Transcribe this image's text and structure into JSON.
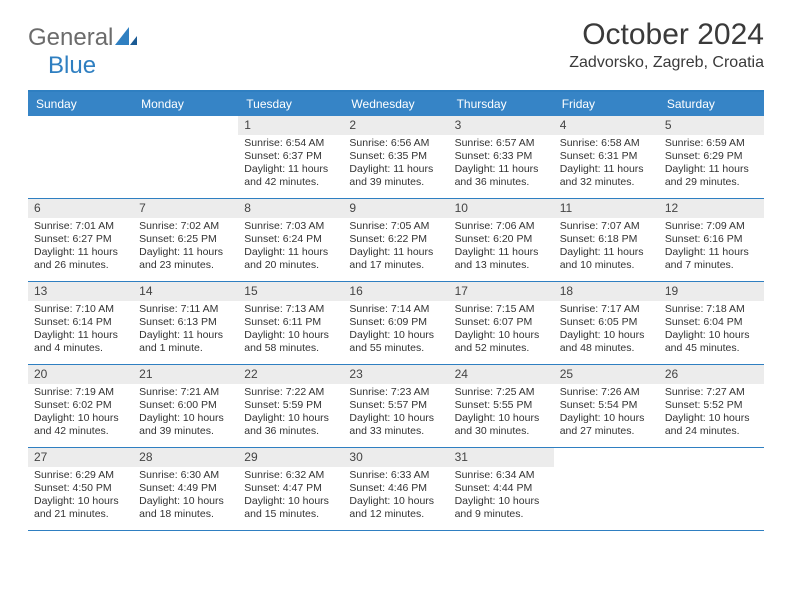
{
  "logo": {
    "text1": "General",
    "text2": "Blue"
  },
  "title": "October 2024",
  "location": "Zadvorsko, Zagreb, Croatia",
  "colors": {
    "header_band": "#3684c6",
    "rule": "#2f7fc1",
    "daynum_band": "#ececec",
    "text": "#333333",
    "logo_gray": "#6b6b6b",
    "logo_blue": "#2f7fc1"
  },
  "fonts": {
    "title_pt": 30,
    "location_pt": 16,
    "dow_pt": 12,
    "cell_pt": 10.5
  },
  "dow": [
    "Sunday",
    "Monday",
    "Tuesday",
    "Wednesday",
    "Thursday",
    "Friday",
    "Saturday"
  ],
  "days": [
    null,
    null,
    {
      "n": "1",
      "sr": "6:54 AM",
      "ss": "6:37 PM",
      "dl": "11 hours and 42 minutes."
    },
    {
      "n": "2",
      "sr": "6:56 AM",
      "ss": "6:35 PM",
      "dl": "11 hours and 39 minutes."
    },
    {
      "n": "3",
      "sr": "6:57 AM",
      "ss": "6:33 PM",
      "dl": "11 hours and 36 minutes."
    },
    {
      "n": "4",
      "sr": "6:58 AM",
      "ss": "6:31 PM",
      "dl": "11 hours and 32 minutes."
    },
    {
      "n": "5",
      "sr": "6:59 AM",
      "ss": "6:29 PM",
      "dl": "11 hours and 29 minutes."
    },
    {
      "n": "6",
      "sr": "7:01 AM",
      "ss": "6:27 PM",
      "dl": "11 hours and 26 minutes."
    },
    {
      "n": "7",
      "sr": "7:02 AM",
      "ss": "6:25 PM",
      "dl": "11 hours and 23 minutes."
    },
    {
      "n": "8",
      "sr": "7:03 AM",
      "ss": "6:24 PM",
      "dl": "11 hours and 20 minutes."
    },
    {
      "n": "9",
      "sr": "7:05 AM",
      "ss": "6:22 PM",
      "dl": "11 hours and 17 minutes."
    },
    {
      "n": "10",
      "sr": "7:06 AM",
      "ss": "6:20 PM",
      "dl": "11 hours and 13 minutes."
    },
    {
      "n": "11",
      "sr": "7:07 AM",
      "ss": "6:18 PM",
      "dl": "11 hours and 10 minutes."
    },
    {
      "n": "12",
      "sr": "7:09 AM",
      "ss": "6:16 PM",
      "dl": "11 hours and 7 minutes."
    },
    {
      "n": "13",
      "sr": "7:10 AM",
      "ss": "6:14 PM",
      "dl": "11 hours and 4 minutes."
    },
    {
      "n": "14",
      "sr": "7:11 AM",
      "ss": "6:13 PM",
      "dl": "11 hours and 1 minute."
    },
    {
      "n": "15",
      "sr": "7:13 AM",
      "ss": "6:11 PM",
      "dl": "10 hours and 58 minutes."
    },
    {
      "n": "16",
      "sr": "7:14 AM",
      "ss": "6:09 PM",
      "dl": "10 hours and 55 minutes."
    },
    {
      "n": "17",
      "sr": "7:15 AM",
      "ss": "6:07 PM",
      "dl": "10 hours and 52 minutes."
    },
    {
      "n": "18",
      "sr": "7:17 AM",
      "ss": "6:05 PM",
      "dl": "10 hours and 48 minutes."
    },
    {
      "n": "19",
      "sr": "7:18 AM",
      "ss": "6:04 PM",
      "dl": "10 hours and 45 minutes."
    },
    {
      "n": "20",
      "sr": "7:19 AM",
      "ss": "6:02 PM",
      "dl": "10 hours and 42 minutes."
    },
    {
      "n": "21",
      "sr": "7:21 AM",
      "ss": "6:00 PM",
      "dl": "10 hours and 39 minutes."
    },
    {
      "n": "22",
      "sr": "7:22 AM",
      "ss": "5:59 PM",
      "dl": "10 hours and 36 minutes."
    },
    {
      "n": "23",
      "sr": "7:23 AM",
      "ss": "5:57 PM",
      "dl": "10 hours and 33 minutes."
    },
    {
      "n": "24",
      "sr": "7:25 AM",
      "ss": "5:55 PM",
      "dl": "10 hours and 30 minutes."
    },
    {
      "n": "25",
      "sr": "7:26 AM",
      "ss": "5:54 PM",
      "dl": "10 hours and 27 minutes."
    },
    {
      "n": "26",
      "sr": "7:27 AM",
      "ss": "5:52 PM",
      "dl": "10 hours and 24 minutes."
    },
    {
      "n": "27",
      "sr": "6:29 AM",
      "ss": "4:50 PM",
      "dl": "10 hours and 21 minutes."
    },
    {
      "n": "28",
      "sr": "6:30 AM",
      "ss": "4:49 PM",
      "dl": "10 hours and 18 minutes."
    },
    {
      "n": "29",
      "sr": "6:32 AM",
      "ss": "4:47 PM",
      "dl": "10 hours and 15 minutes."
    },
    {
      "n": "30",
      "sr": "6:33 AM",
      "ss": "4:46 PM",
      "dl": "10 hours and 12 minutes."
    },
    {
      "n": "31",
      "sr": "6:34 AM",
      "ss": "4:44 PM",
      "dl": "10 hours and 9 minutes."
    },
    null,
    null
  ],
  "labels": {
    "sunrise": "Sunrise: ",
    "sunset": "Sunset: ",
    "daylight": "Daylight: "
  }
}
